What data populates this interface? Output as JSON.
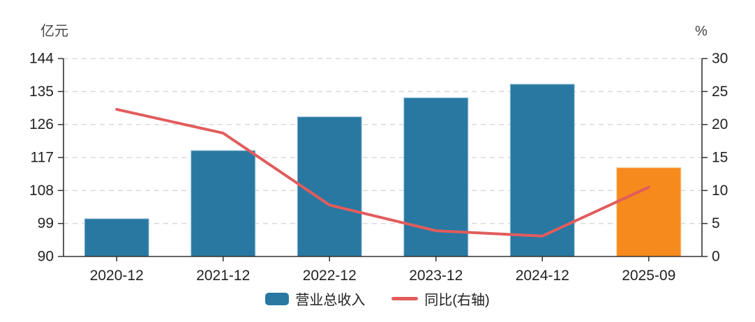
{
  "chart_data": {
    "type": "bar",
    "subtype": "dual-axis bar + line",
    "categories": [
      "2020-12",
      "2021-12",
      "2022-12",
      "2023-12",
      "2024-12",
      "2025-09"
    ],
    "series": [
      {
        "name": "营业总收入",
        "type": "bar",
        "axis": "left",
        "unit": "亿元",
        "values": [
          100.3,
          118.9,
          128.1,
          133.3,
          137.0,
          114.2
        ],
        "bar_colors": [
          "#2878a2",
          "#2878a2",
          "#2878a2",
          "#2878a2",
          "#2878a2",
          "#f78a1d"
        ],
        "bar_borders": [
          "#9fc6db",
          "#9fc6db",
          "#9fc6db",
          "#9fc6db",
          "#9fc6db",
          "#fbc389"
        ]
      },
      {
        "name": "同比(右轴)",
        "type": "line",
        "axis": "right",
        "unit": "%",
        "values": [
          22.3,
          18.7,
          7.8,
          3.9,
          3.1,
          10.5
        ],
        "color": "#e25c5c"
      }
    ],
    "left_axis": {
      "title": "亿元",
      "min": 90,
      "max": 144,
      "ticks": [
        90,
        99,
        108,
        117,
        126,
        135,
        144
      ]
    },
    "right_axis": {
      "title": "%",
      "min": 0,
      "max": 30,
      "ticks": [
        0,
        5,
        10,
        15,
        20,
        25,
        30
      ]
    },
    "grid": "horizontal dashed gridlines",
    "legend_position": "bottom center",
    "legend": [
      {
        "label": "营业总收入",
        "swatch": "bar",
        "color": "#2878a2"
      },
      {
        "label": "同比(右轴)",
        "swatch": "line",
        "color": "#e25c5c"
      }
    ]
  },
  "colors": {
    "bar_blue": "#2878a2",
    "bar_orange": "#f78a1d",
    "line_red": "#e25c5c",
    "grid": "#d9d9d9",
    "axis": "#333333",
    "text": "#222222"
  }
}
